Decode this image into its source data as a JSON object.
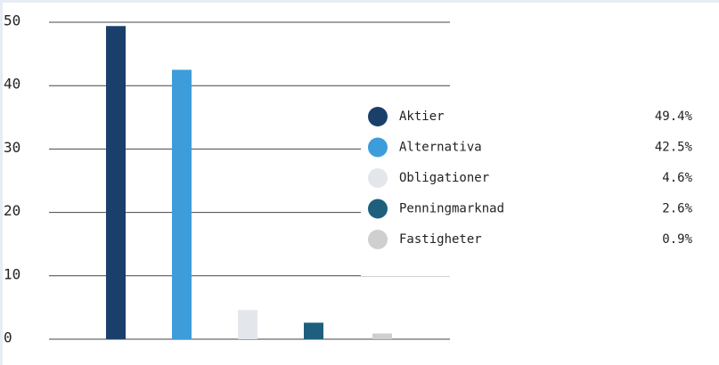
{
  "chart_data": {
    "type": "bar",
    "categories": [
      "Aktier",
      "Alternativa",
      "Obligationer",
      "Penningmarknad",
      "Fastigheter"
    ],
    "values": [
      49.4,
      42.5,
      4.6,
      2.6,
      0.9
    ],
    "value_labels": [
      "49.4%",
      "42.5%",
      "4.6%",
      "2.6%",
      "0.9%"
    ],
    "colors": [
      "#1b3f6b",
      "#3d9ddb",
      "#e3e6ea",
      "#1f5f7e",
      "#cfcfcf"
    ],
    "ylim": [
      0,
      50
    ],
    "yticks": [
      0,
      10,
      20,
      30,
      40,
      50
    ],
    "grid": true,
    "legend": "right"
  }
}
